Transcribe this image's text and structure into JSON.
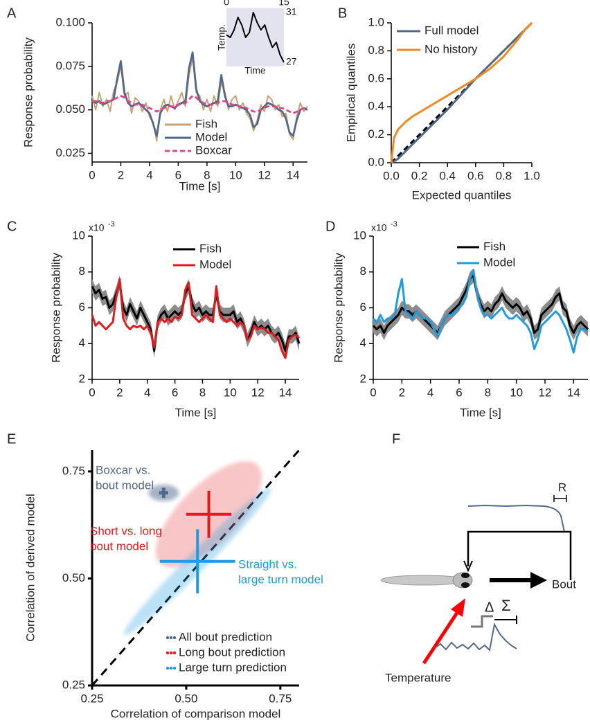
{
  "panel_labels": [
    "A",
    "B",
    "C",
    "D",
    "E",
    "F"
  ],
  "chart_data": [
    {
      "type": "line",
      "xlabel": "Time [s]",
      "ylabel": "Response probability",
      "xlim": [
        0,
        15
      ],
      "xticks": [
        0,
        2,
        4,
        6,
        8,
        10,
        12,
        14
      ],
      "ylim": [
        0.02,
        0.1
      ],
      "yticks": [
        0.025,
        {
          "value": 0.05,
          "label": "0.050"
        },
        0.075,
        {
          "value": 0.1,
          "label": "0.100"
        }
      ],
      "x": [
        0,
        0.25,
        0.5,
        0.75,
        1,
        1.25,
        1.5,
        1.75,
        2,
        2.25,
        2.5,
        2.75,
        3,
        3.25,
        3.5,
        3.75,
        4,
        4.25,
        4.5,
        4.75,
        5,
        5.25,
        5.5,
        5.75,
        6,
        6.25,
        6.5,
        6.75,
        7,
        7.25,
        7.5,
        7.75,
        8,
        8.25,
        8.5,
        8.75,
        9,
        9.25,
        9.5,
        9.75,
        10,
        10.25,
        10.5,
        10.75,
        11,
        11.25,
        11.5,
        11.75,
        12,
        12.25,
        12.5,
        12.75,
        13,
        13.25,
        13.5,
        13.75,
        14,
        14.25,
        14.5,
        14.75,
        15
      ],
      "series": [
        {
          "name": "Fish",
          "color": "#c9a26f",
          "values": [
            0.058,
            0.05,
            0.06,
            0.052,
            0.056,
            0.049,
            0.061,
            0.066,
            0.075,
            0.058,
            0.06,
            0.048,
            0.057,
            0.055,
            0.049,
            0.054,
            0.046,
            0.043,
            0.032,
            0.05,
            0.056,
            0.049,
            0.058,
            0.05,
            0.055,
            0.06,
            0.052,
            0.07,
            0.08,
            0.06,
            0.058,
            0.05,
            0.056,
            0.049,
            0.058,
            0.052,
            0.066,
            0.06,
            0.05,
            0.056,
            0.058,
            0.05,
            0.054,
            0.048,
            0.045,
            0.038,
            0.044,
            0.053,
            0.049,
            0.058,
            0.056,
            0.05,
            0.053,
            0.046,
            0.048,
            0.036,
            0.033,
            0.046,
            0.054,
            0.049,
            0.052
          ]
        },
        {
          "name": "Model",
          "color": "#51698a",
          "values": [
            0.055,
            0.054,
            0.055,
            0.053,
            0.054,
            0.055,
            0.056,
            0.068,
            0.078,
            0.06,
            0.054,
            0.052,
            0.053,
            0.054,
            0.052,
            0.05,
            0.048,
            0.042,
            0.035,
            0.048,
            0.052,
            0.053,
            0.052,
            0.051,
            0.053,
            0.054,
            0.055,
            0.074,
            0.083,
            0.062,
            0.055,
            0.053,
            0.052,
            0.053,
            0.054,
            0.055,
            0.07,
            0.058,
            0.052,
            0.052,
            0.053,
            0.052,
            0.051,
            0.05,
            0.047,
            0.04,
            0.042,
            0.05,
            0.052,
            0.054,
            0.053,
            0.052,
            0.05,
            0.049,
            0.045,
            0.037,
            0.035,
            0.044,
            0.05,
            0.051,
            0.05
          ]
        },
        {
          "name": "Boxcar",
          "color": "#e8418a",
          "dashed": true,
          "values": [
            0.055,
            0.055,
            0.054,
            0.054,
            0.055,
            0.055,
            0.056,
            0.057,
            0.058,
            0.057,
            0.055,
            0.054,
            0.053,
            0.053,
            0.053,
            0.052,
            0.051,
            0.05,
            0.049,
            0.05,
            0.051,
            0.052,
            0.052,
            0.052,
            0.053,
            0.053,
            0.054,
            0.056,
            0.058,
            0.057,
            0.055,
            0.054,
            0.053,
            0.053,
            0.053,
            0.054,
            0.055,
            0.055,
            0.054,
            0.053,
            0.053,
            0.052,
            0.052,
            0.051,
            0.05,
            0.049,
            0.049,
            0.05,
            0.051,
            0.052,
            0.052,
            0.052,
            0.051,
            0.051,
            0.05,
            0.049,
            0.048,
            0.049,
            0.05,
            0.051,
            0.051
          ]
        }
      ]
    },
    {
      "type": "line",
      "xlabel": "Time",
      "ylabel": "Temp.",
      "xlim": [
        0,
        15
      ],
      "xticks": [
        0,
        15
      ],
      "ylim": [
        27,
        31
      ],
      "yticks": [
        31,
        27
      ],
      "x": [
        0,
        1,
        2,
        3,
        4,
        5,
        6,
        7,
        8,
        9,
        10,
        11,
        12,
        13,
        14,
        15
      ],
      "series": [
        {
          "color": "#000000",
          "values": [
            29.2,
            29.0,
            29.6,
            30.6,
            30.0,
            29.0,
            29.4,
            31.0,
            30.2,
            29.6,
            30.0,
            29.0,
            28.2,
            28.6,
            27.6,
            27.0
          ]
        }
      ]
    },
    {
      "type": "line",
      "xlabel": "Expected quantiles",
      "ylabel": "Empirical quantiles",
      "xlim": [
        0,
        1
      ],
      "xticks": [
        {
          "value": 0,
          "label": "0.0"
        },
        0.2,
        0.4,
        0.6,
        0.8,
        {
          "value": 1,
          "label": "1.0"
        }
      ],
      "ylim": [
        0,
        1
      ],
      "yticks": [
        {
          "value": 0,
          "label": "0.0"
        },
        0.2,
        0.4,
        0.6,
        0.8,
        {
          "value": 1,
          "label": "1.0"
        }
      ],
      "x": [
        0,
        0.02,
        0.05,
        0.1,
        0.15,
        0.2,
        0.3,
        0.4,
        0.5,
        0.6,
        0.7,
        0.8,
        0.85,
        0.9,
        0.95,
        0.98,
        1.0
      ],
      "series": [
        {
          "name": "Full model",
          "color": "#51698a",
          "values": [
            0,
            0.01,
            0.03,
            0.08,
            0.13,
            0.18,
            0.28,
            0.38,
            0.49,
            0.6,
            0.7,
            0.8,
            0.85,
            0.9,
            0.95,
            0.98,
            1.0
          ]
        },
        {
          "name": "No history",
          "color": "#f28b1f",
          "values": [
            0,
            0.18,
            0.24,
            0.29,
            0.33,
            0.36,
            0.42,
            0.48,
            0.54,
            0.6,
            0.67,
            0.76,
            0.82,
            0.88,
            0.95,
            0.98,
            1.0
          ]
        }
      ]
    },
    {
      "type": "line",
      "xlabel": "Time [s]",
      "ylabel": "Response probability",
      "scale_base": "x10",
      "scale_exponent": "-3",
      "xlim": [
        0,
        15
      ],
      "xticks": [
        0,
        2,
        4,
        6,
        8,
        10,
        12,
        14
      ],
      "ylim": [
        2,
        10
      ],
      "yticks": [
        2,
        4,
        6,
        8,
        10
      ],
      "x": [
        0,
        0.25,
        0.5,
        0.75,
        1,
        1.25,
        1.5,
        1.75,
        2,
        2.25,
        2.5,
        2.75,
        3,
        3.25,
        3.5,
        3.75,
        4,
        4.25,
        4.5,
        4.75,
        5,
        5.25,
        5.5,
        5.75,
        6,
        6.25,
        6.5,
        6.75,
        7,
        7.25,
        7.5,
        7.75,
        8,
        8.25,
        8.5,
        8.75,
        9,
        9.25,
        9.5,
        9.75,
        10,
        10.25,
        10.5,
        10.75,
        11,
        11.25,
        11.5,
        11.75,
        12,
        12.25,
        12.5,
        12.75,
        13,
        13.25,
        13.5,
        13.75,
        14,
        14.25,
        14.5,
        14.75,
        15
      ],
      "series": [
        {
          "name": "Fish",
          "color": "#000000",
          "error": 0.4,
          "values": [
            7.2,
            6.8,
            7.0,
            6.5,
            6.6,
            6.0,
            6.2,
            6.8,
            7.4,
            6.0,
            5.6,
            6.2,
            5.8,
            5.4,
            6.0,
            5.6,
            5.2,
            4.8,
            3.6,
            5.2,
            5.6,
            5.8,
            5.4,
            5.6,
            5.8,
            5.6,
            5.8,
            6.8,
            7.2,
            6.2,
            5.8,
            6.0,
            5.6,
            5.8,
            5.6,
            5.6,
            6.8,
            5.8,
            5.6,
            5.6,
            5.6,
            5.8,
            5.2,
            5.4,
            5.0,
            4.2,
            4.6,
            5.2,
            4.8,
            5.0,
            4.8,
            5.0,
            4.6,
            4.4,
            4.6,
            4.2,
            3.6,
            4.4,
            4.4,
            4.6,
            4.0
          ]
        },
        {
          "name": "Model",
          "color": "#e31a1c",
          "values": [
            5.6,
            5.0,
            5.2,
            5.0,
            4.8,
            5.0,
            5.2,
            6.6,
            7.6,
            5.4,
            5.0,
            4.8,
            5.0,
            4.9,
            5.0,
            4.8,
            5.0,
            4.6,
            3.8,
            5.2,
            5.4,
            5.2,
            5.4,
            5.2,
            5.5,
            5.4,
            5.6,
            7.0,
            7.4,
            5.6,
            5.4,
            5.2,
            5.4,
            5.6,
            5.4,
            5.2,
            7.2,
            5.6,
            5.4,
            5.2,
            5.4,
            5.2,
            5.0,
            5.2,
            5.0,
            4.2,
            4.4,
            5.0,
            4.8,
            4.9,
            4.8,
            4.6,
            4.6,
            4.4,
            4.2,
            3.6,
            3.2,
            4.2,
            4.4,
            4.5,
            4.3
          ]
        }
      ]
    },
    {
      "type": "line",
      "xlabel": "Time [s]",
      "ylabel": "Response probability",
      "scale_base": "x10",
      "scale_exponent": "-3",
      "xlim": [
        0,
        15
      ],
      "xticks": [
        0,
        2,
        4,
        6,
        8,
        10,
        12,
        14
      ],
      "ylim": [
        2,
        10
      ],
      "yticks": [
        2,
        4,
        6,
        8,
        10
      ],
      "x": [
        0,
        0.25,
        0.5,
        0.75,
        1,
        1.25,
        1.5,
        1.75,
        2,
        2.25,
        2.5,
        2.75,
        3,
        3.25,
        3.5,
        3.75,
        4,
        4.25,
        4.5,
        4.75,
        5,
        5.25,
        5.5,
        5.75,
        6,
        6.25,
        6.5,
        6.75,
        7,
        7.25,
        7.5,
        7.75,
        8,
        8.25,
        8.5,
        8.75,
        9,
        9.25,
        9.5,
        9.75,
        10,
        10.25,
        10.5,
        10.75,
        11,
        11.25,
        11.5,
        11.75,
        12,
        12.25,
        12.5,
        12.75,
        13,
        13.25,
        13.5,
        13.75,
        14,
        14.25,
        14.5,
        14.75,
        15
      ],
      "series": [
        {
          "name": "Fish",
          "color": "#000000",
          "error": 0.4,
          "values": [
            5.0,
            4.8,
            5.0,
            4.6,
            5.0,
            5.2,
            5.4,
            5.6,
            6.0,
            5.8,
            5.8,
            5.6,
            5.8,
            5.6,
            5.4,
            5.2,
            5.0,
            4.8,
            4.6,
            5.0,
            5.4,
            5.6,
            5.8,
            6.0,
            6.2,
            6.6,
            7.0,
            7.6,
            7.8,
            6.8,
            6.2,
            5.8,
            6.0,
            5.8,
            6.2,
            6.4,
            6.8,
            6.4,
            6.2,
            6.0,
            6.2,
            6.0,
            5.6,
            5.8,
            5.4,
            4.6,
            4.8,
            5.6,
            5.8,
            6.0,
            6.2,
            6.6,
            6.8,
            6.0,
            5.8,
            5.0,
            4.6,
            5.0,
            5.2,
            5.0,
            4.8
          ]
        },
        {
          "name": "Model",
          "color": "#1f9be0",
          "values": [
            5.4,
            5.2,
            5.6,
            5.2,
            5.4,
            5.4,
            5.6,
            6.8,
            7.6,
            5.8,
            5.6,
            5.4,
            5.8,
            5.6,
            5.4,
            5.4,
            5.2,
            4.8,
            4.4,
            5.0,
            5.4,
            5.6,
            5.6,
            5.8,
            6.0,
            6.2,
            6.6,
            7.6,
            8.1,
            6.8,
            6.0,
            5.6,
            5.6,
            5.4,
            5.6,
            5.8,
            6.0,
            5.6,
            5.4,
            5.4,
            5.6,
            5.4,
            5.2,
            5.0,
            4.6,
            3.7,
            4.2,
            5.0,
            5.2,
            5.4,
            5.6,
            5.8,
            5.6,
            5.2,
            4.8,
            4.2,
            3.5,
            4.4,
            4.8,
            4.8,
            4.7
          ]
        }
      ]
    },
    {
      "type": "scatter",
      "xlabel": "Correlation of comparison model",
      "ylabel": "Correlation of derived model",
      "xlim": [
        0.25,
        0.8
      ],
      "xticks": [
        0.25,
        {
          "value": 0.5,
          "label": "0.50"
        },
        0.75
      ],
      "ylim": [
        0.25,
        0.8
      ],
      "yticks": [
        0.25,
        {
          "value": 0.5,
          "label": "0.50"
        },
        0.75
      ],
      "series": [
        {
          "name": "All bout prediction",
          "color": "#51698a",
          "x": 0.44,
          "y": 0.7,
          "xerr": 0.012,
          "yerr": 0.012
        },
        {
          "name": "Long bout prediction",
          "color": "#e31a1c",
          "x": 0.56,
          "y": 0.65,
          "xerr": 0.06,
          "yerr": 0.055
        },
        {
          "name": "Large turn prediction",
          "color": "#1f9be0",
          "x": 0.53,
          "y": 0.54,
          "xerr": 0.1,
          "yerr": 0.075
        }
      ],
      "annotations": [
        {
          "text": [
            "Boxcar vs.",
            "bout model"
          ],
          "color": "#51698a"
        },
        {
          "text": [
            "Short vs. long",
            "bout model"
          ],
          "color": "#e31a1c"
        },
        {
          "text": [
            "Straight vs.",
            "large turn model"
          ],
          "color": "#1f9be0"
        }
      ]
    }
  ],
  "diagram": {
    "labels": [
      "R",
      "Bout",
      "Temperature",
      "Δ",
      "Σ"
    ]
  }
}
